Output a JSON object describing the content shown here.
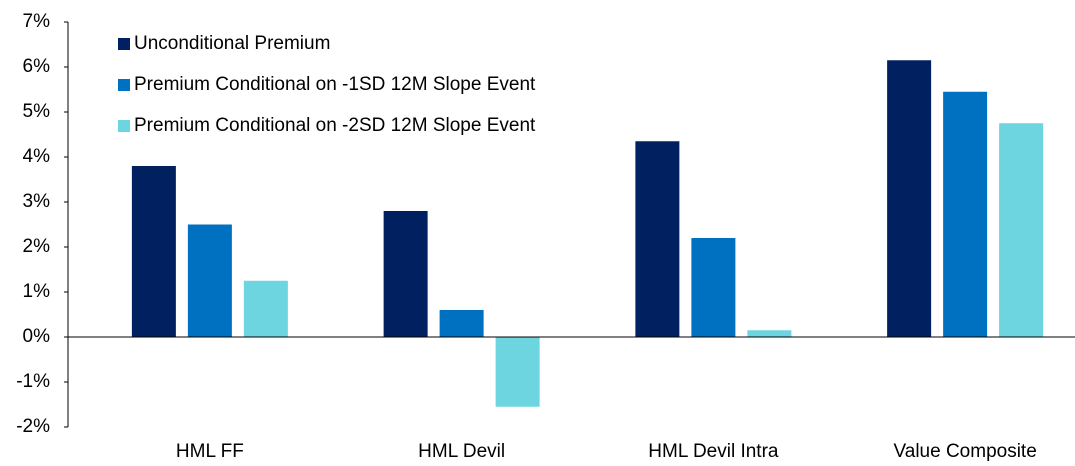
{
  "chart_data": {
    "type": "bar",
    "categories": [
      "HML FF",
      "HML Devil",
      "HML Devil Intra",
      "Value Composite"
    ],
    "series": [
      {
        "name": "Unconditional Premium",
        "color": "#002060",
        "values": [
          3.8,
          2.8,
          4.35,
          6.15
        ]
      },
      {
        "name": "Premium Conditional on -1SD 12M Slope Event",
        "color": "#0070c0",
        "values": [
          2.5,
          0.6,
          2.2,
          5.45
        ]
      },
      {
        "name": "Premium Conditional on -2SD 12M Slope Event",
        "color": "#6dd5e0",
        "values": [
          1.25,
          -1.55,
          0.15,
          4.75
        ]
      }
    ],
    "ylim": [
      -2,
      7
    ],
    "yticks": [
      {
        "value": -2,
        "label": "-2%"
      },
      {
        "value": -1,
        "label": "-1%"
      },
      {
        "value": 0,
        "label": "0%"
      },
      {
        "value": 1,
        "label": "1%"
      },
      {
        "value": 2,
        "label": "2%"
      },
      {
        "value": 3,
        "label": "3%"
      },
      {
        "value": 4,
        "label": "4%"
      },
      {
        "value": 5,
        "label": "5%"
      },
      {
        "value": 6,
        "label": "6%"
      },
      {
        "value": 7,
        "label": "7%"
      }
    ],
    "grid": false,
    "legend": "upper left"
  }
}
